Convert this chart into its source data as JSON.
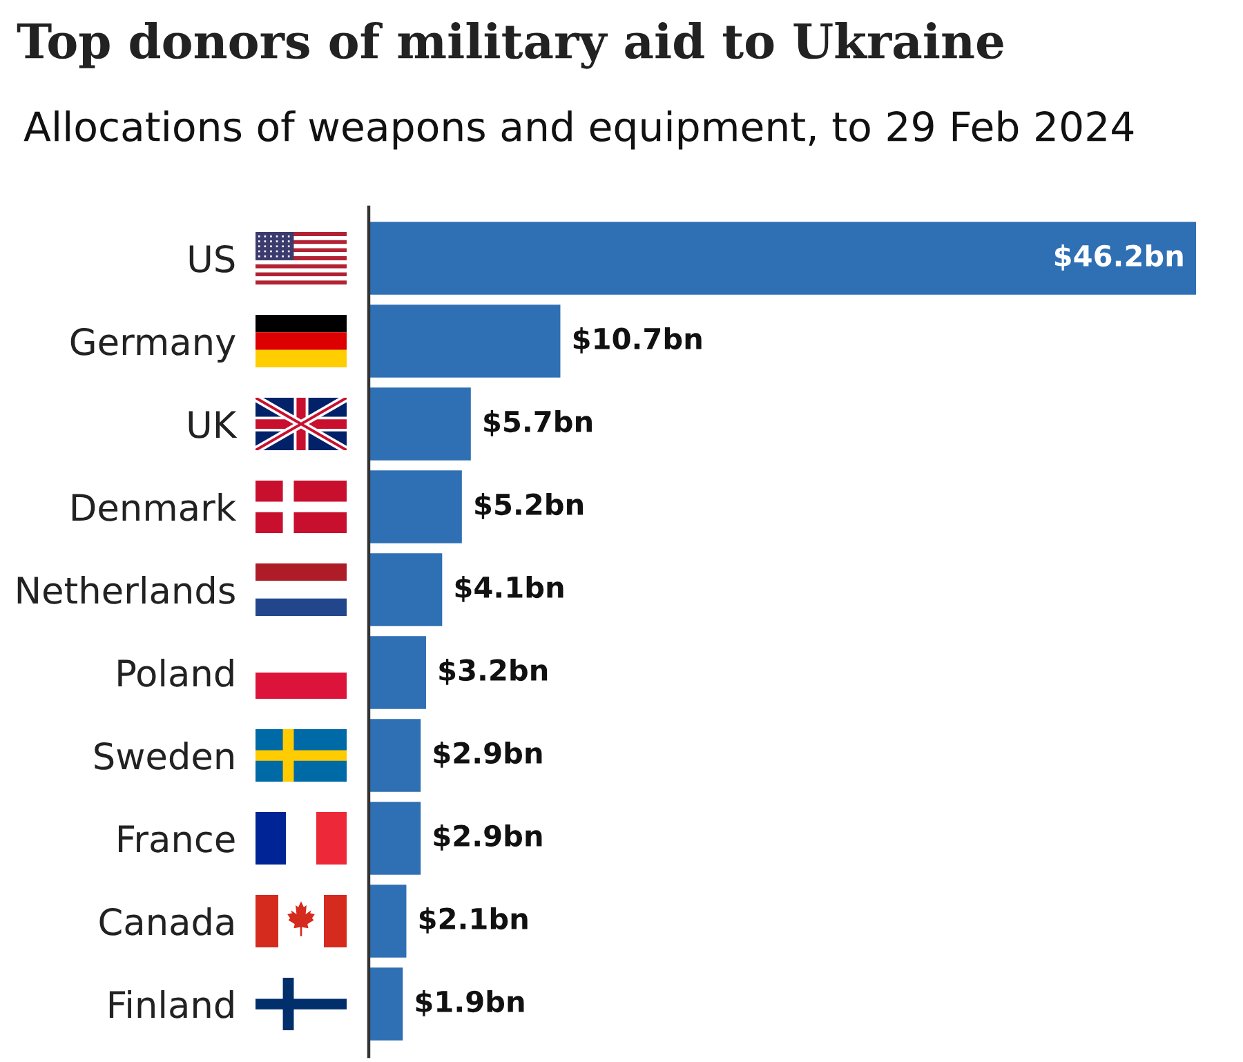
{
  "chart_data": {
    "type": "bar",
    "orientation": "horizontal",
    "title": "Top donors of military aid to Ukraine",
    "subtitle": "Allocations of weapons and equipment, to 29 Feb 2024",
    "categories": [
      "US",
      "Germany",
      "UK",
      "Denmark",
      "Netherlands",
      "Poland",
      "Sweden",
      "France",
      "Canada",
      "Finland"
    ],
    "values": [
      46.2,
      10.7,
      5.7,
      5.2,
      4.1,
      3.2,
      2.9,
      2.9,
      2.1,
      1.9
    ],
    "value_labels": [
      "$46.2bn",
      "$10.7bn",
      "$5.7bn",
      "$5.2bn",
      "$4.1bn",
      "$3.2bn",
      "$2.9bn",
      "$2.9bn",
      "$2.1bn",
      "$1.9bn"
    ],
    "color": "#2f6fb4"
  }
}
